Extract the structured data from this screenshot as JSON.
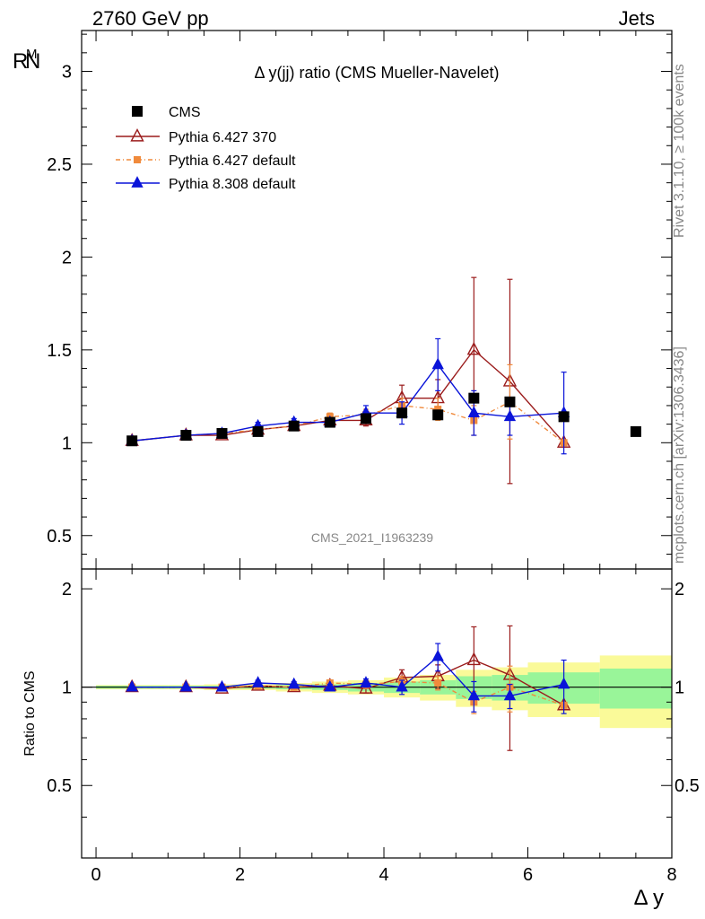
{
  "header": {
    "left_label": "2760 GeV pp",
    "right_label": "Jets",
    "rivet_label": "Rivet 3.1.10, ≥ 100k events",
    "mcplots_label": "mcplots.cern.ch [arXiv:1306.3436]",
    "analysis_id": "CMS_2021_I1963239"
  },
  "colors": {
    "cms": "#000000",
    "pythia6_370": "#9b1c1c",
    "pythia6_default": "#f08a3c",
    "pythia8_default": "#0a14d9",
    "band_inner": "#99f599",
    "band_outer": "#fafa99"
  },
  "chart_data": {
    "type": "scatter",
    "title": "Δ y(jj) ratio (CMS Mueller-Navelet)",
    "xlabel": "Δ y",
    "ylabel": "R^M_N",
    "ratio_ylabel": "Ratio to CMS",
    "xlim": [
      -0.2,
      8.0
    ],
    "ylim": [
      0.32,
      3.22
    ],
    "ratio_ylim": [
      0.3,
      2.3
    ],
    "x_ticks": [
      "0",
      "2",
      "4",
      "6",
      "8"
    ],
    "y_ticks": [
      "0.5",
      "1",
      "1.5",
      "2",
      "2.5",
      "3"
    ],
    "ratio_y_ticks": [
      "0.5",
      "1",
      "2"
    ],
    "legend_position": "top-left",
    "x": [
      0.5,
      1.25,
      1.75,
      2.25,
      2.75,
      3.25,
      3.75,
      4.25,
      4.75,
      5.25,
      5.75,
      6.5,
      7.5
    ],
    "series": [
      {
        "name": "CMS",
        "marker": "square",
        "values": [
          1.01,
          1.04,
          1.05,
          1.06,
          1.09,
          1.11,
          1.13,
          1.16,
          1.15,
          1.24,
          1.22,
          1.14,
          1.06
        ]
      },
      {
        "name": "Pythia 6.427 370",
        "marker": "open-triangle",
        "values": [
          1.01,
          1.04,
          1.04,
          1.07,
          1.09,
          1.12,
          1.12,
          1.24,
          1.24,
          1.5,
          1.33,
          1.0,
          null
        ],
        "errors": [
          0.01,
          0.01,
          0.01,
          0.02,
          0.02,
          0.02,
          0.03,
          0.07,
          0.1,
          0.39,
          0.55,
          0.01,
          null
        ]
      },
      {
        "name": "Pythia 6.427 default",
        "marker": "filled-square",
        "values": [
          1.01,
          1.04,
          1.05,
          1.07,
          1.09,
          1.14,
          1.15,
          1.2,
          1.18,
          1.12,
          1.22,
          1.0,
          null
        ],
        "errors": [
          0.01,
          0.01,
          0.01,
          0.02,
          0.02,
          0.02,
          0.03,
          0.04,
          0.06,
          0.08,
          0.2,
          0.01,
          null
        ]
      },
      {
        "name": "Pythia 8.308 default",
        "marker": "filled-triangle",
        "values": [
          1.01,
          1.04,
          1.05,
          1.09,
          1.11,
          1.11,
          1.16,
          1.16,
          1.42,
          1.16,
          1.14,
          1.16,
          null
        ],
        "errors": [
          0.01,
          0.01,
          0.01,
          0.02,
          0.02,
          0.02,
          0.04,
          0.06,
          0.14,
          0.12,
          0.1,
          0.22,
          null
        ]
      }
    ],
    "ratio_series": [
      {
        "name": "Pythia 6.427 370",
        "values": [
          1.0,
          1.0,
          0.99,
          1.01,
          1.0,
          1.01,
          0.99,
          1.07,
          1.08,
          1.21,
          1.09,
          0.88,
          null
        ],
        "errors": [
          0.01,
          0.01,
          0.01,
          0.02,
          0.02,
          0.02,
          0.03,
          0.06,
          0.09,
          0.32,
          0.45,
          0.01,
          null
        ]
      },
      {
        "name": "Pythia 6.427 default",
        "values": [
          1.0,
          1.0,
          1.0,
          1.01,
          1.0,
          1.03,
          1.02,
          1.04,
          1.03,
          0.9,
          1.0,
          0.88,
          null
        ],
        "errors": [
          0.01,
          0.01,
          0.01,
          0.02,
          0.02,
          0.02,
          0.03,
          0.04,
          0.05,
          0.07,
          0.16,
          0.01,
          null
        ]
      },
      {
        "name": "Pythia 8.308 default",
        "values": [
          1.0,
          1.0,
          1.0,
          1.03,
          1.02,
          1.0,
          1.03,
          1.0,
          1.24,
          0.94,
          0.94,
          1.02,
          null
        ],
        "errors": [
          0.01,
          0.01,
          0.01,
          0.02,
          0.02,
          0.02,
          0.03,
          0.05,
          0.12,
          0.1,
          0.08,
          0.19,
          null
        ]
      }
    ],
    "uncertainty_bands": {
      "edges": [
        0.0,
        1.0,
        1.5,
        2.0,
        2.5,
        3.0,
        3.5,
        4.0,
        4.5,
        5.0,
        5.5,
        6.0,
        7.0,
        8.0
      ],
      "inner": [
        0.01,
        0.01,
        0.01,
        0.01,
        0.015,
        0.02,
        0.03,
        0.04,
        0.05,
        0.08,
        0.09,
        0.11,
        0.14
      ],
      "outer": [
        0.015,
        0.015,
        0.02,
        0.02,
        0.03,
        0.04,
        0.05,
        0.07,
        0.09,
        0.13,
        0.15,
        0.19,
        0.25
      ]
    }
  }
}
